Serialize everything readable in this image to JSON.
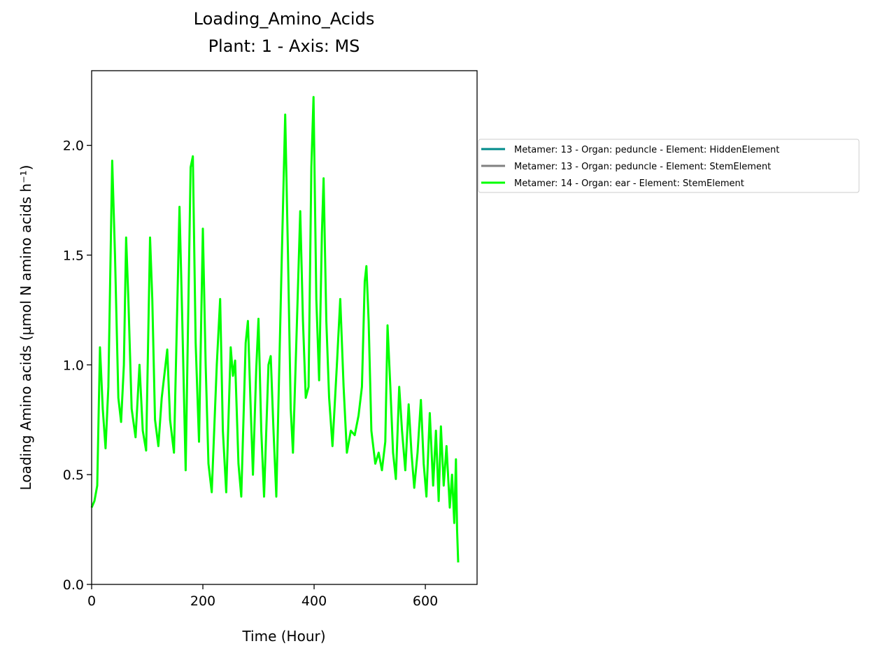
{
  "chart_data": {
    "type": "line",
    "title": "Loading_Amino_Acids",
    "subtitle": "Plant: 1 - Axis: MS",
    "x_label": "Time (Hour)",
    "y_label": "Loading Amino acids (µmol N amino acids h⁻¹)",
    "xlim": [
      0,
      693
    ],
    "ylim": [
      0,
      2.34
    ],
    "xticks": [
      0,
      200,
      400,
      600
    ],
    "yticks": [
      {
        "value": 0,
        "label": "0.0"
      },
      {
        "value": 0.5,
        "label": "0.5"
      },
      {
        "value": 1,
        "label": "1.0"
      },
      {
        "value": 1.5,
        "label": "1.5"
      },
      {
        "value": 2,
        "label": "2.0"
      }
    ],
    "series": [
      {
        "name": "Metamer: 13 - Organ: peduncle - Element: HiddenElement",
        "color": "#008b8b",
        "x": [],
        "values": []
      },
      {
        "name": "Metamer: 13 - Organ: peduncle - Element: StemElement",
        "color": "#808080",
        "x": [],
        "values": []
      },
      {
        "name": "Metamer: 14 - Organ: ear - Element: StemElement",
        "color": "#00ff00",
        "x": [
          0,
          5,
          10,
          15,
          20,
          25,
          30,
          37,
          42,
          48,
          53,
          58,
          62,
          66,
          72,
          79,
          86,
          92,
          98,
          105,
          109,
          114,
          120,
          126,
          136,
          141,
          148,
          158,
          163,
          169,
          178,
          182,
          187,
          193,
          200,
          205,
          210,
          216,
          225,
          231,
          236,
          242,
          250,
          254,
          258,
          264,
          269,
          277,
          281,
          286,
          290,
          296,
          300,
          305,
          310,
          318,
          322,
          327,
          332,
          342,
          348,
          353,
          358,
          362,
          368,
          375,
          380,
          385,
          390,
          395,
          399,
          404,
          409,
          414,
          417,
          422,
          427,
          433,
          441,
          447,
          453,
          459,
          466,
          473,
          480,
          486,
          491,
          494,
          498,
          503,
          510,
          516,
          522,
          528,
          532,
          537,
          542,
          547,
          553,
          558,
          564,
          570,
          575,
          580,
          586,
          592,
          597,
          602,
          608,
          614,
          619,
          624,
          628,
          633,
          638,
          644,
          648,
          652,
          655,
          657,
          659
        ],
        "values": [
          0.35,
          0.38,
          0.45,
          1.08,
          0.8,
          0.62,
          0.9,
          1.93,
          1.5,
          0.85,
          0.74,
          1.0,
          1.58,
          1.3,
          0.8,
          0.67,
          1.0,
          0.7,
          0.61,
          1.58,
          1.3,
          0.75,
          0.63,
          0.85,
          1.07,
          0.75,
          0.6,
          1.72,
          1.2,
          0.52,
          1.9,
          1.95,
          1.1,
          0.65,
          1.62,
          1.0,
          0.55,
          0.42,
          1.0,
          1.3,
          0.7,
          0.42,
          1.08,
          0.95,
          1.02,
          0.55,
          0.4,
          1.1,
          1.2,
          0.8,
          0.5,
          0.98,
          1.21,
          0.7,
          0.4,
          1.0,
          1.04,
          0.7,
          0.4,
          1.5,
          2.14,
          1.5,
          0.8,
          0.6,
          1.1,
          1.7,
          1.2,
          0.85,
          0.9,
          1.9,
          2.22,
          1.3,
          0.93,
          1.6,
          1.85,
          1.2,
          0.85,
          0.63,
          1.0,
          1.3,
          0.9,
          0.6,
          0.7,
          0.68,
          0.77,
          0.9,
          1.38,
          1.45,
          1.2,
          0.7,
          0.55,
          0.6,
          0.52,
          0.65,
          1.18,
          0.9,
          0.6,
          0.48,
          0.9,
          0.7,
          0.52,
          0.82,
          0.6,
          0.44,
          0.6,
          0.84,
          0.55,
          0.4,
          0.78,
          0.45,
          0.7,
          0.38,
          0.72,
          0.45,
          0.63,
          0.35,
          0.5,
          0.28,
          0.57,
          0.25,
          0.1
        ]
      }
    ],
    "legend": "outside-right"
  }
}
